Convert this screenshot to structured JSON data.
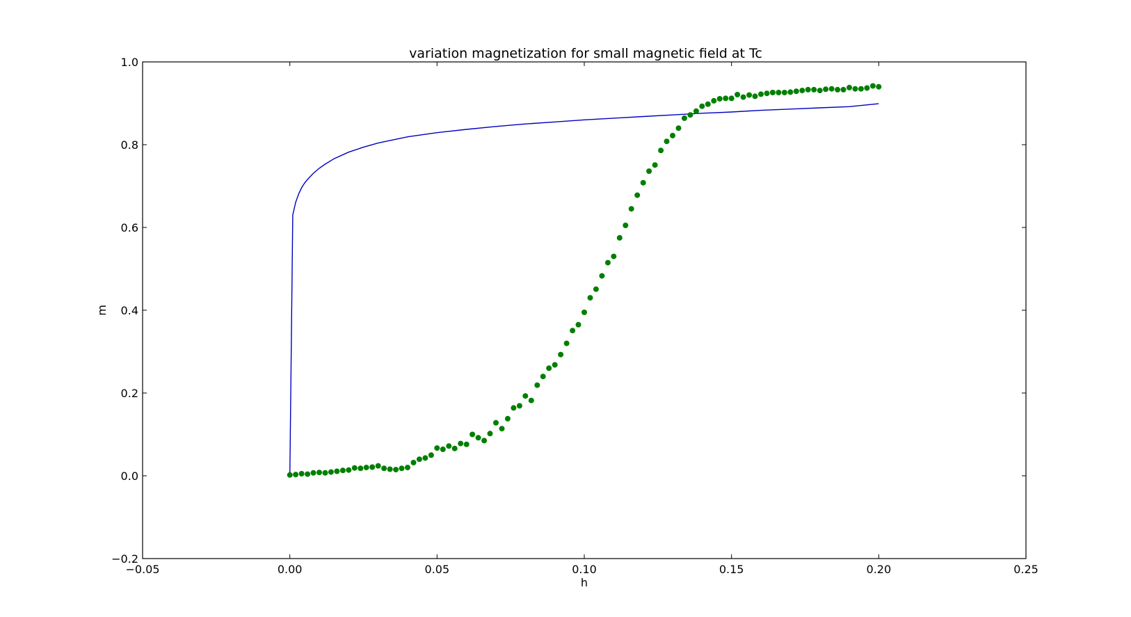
{
  "chart_data": {
    "type": "line",
    "title": "variation magnetization for small magnetic field at Tc",
    "xlabel": "h",
    "ylabel": "m",
    "xlim": [
      -0.05,
      0.25
    ],
    "ylim": [
      -0.2,
      1.0
    ],
    "x_ticks": [
      -0.05,
      0.0,
      0.05,
      0.1,
      0.15,
      0.2,
      0.25
    ],
    "x_tick_labels": [
      "−0.05",
      "0.00",
      "0.05",
      "0.10",
      "0.15",
      "0.20",
      "0.25"
    ],
    "y_ticks": [
      -0.2,
      0.0,
      0.2,
      0.4,
      0.6,
      0.8,
      1.0
    ],
    "y_tick_labels": [
      "−0.2",
      "0.0",
      "0.2",
      "0.4",
      "0.6",
      "0.8",
      "1.0"
    ],
    "grid": false,
    "series": [
      {
        "kind": "line",
        "color": "#0000bf",
        "x": [
          0.0,
          0.001,
          0.002,
          0.003,
          0.004,
          0.005,
          0.006,
          0.008,
          0.01,
          0.012,
          0.015,
          0.02,
          0.025,
          0.03,
          0.04,
          0.05,
          0.06,
          0.07,
          0.08,
          0.09,
          0.1,
          0.11,
          0.12,
          0.13,
          0.14,
          0.15,
          0.16,
          0.17,
          0.18,
          0.19,
          0.2
        ],
        "y": [
          0.0,
          0.63,
          0.661,
          0.681,
          0.696,
          0.707,
          0.716,
          0.731,
          0.743,
          0.753,
          0.766,
          0.782,
          0.794,
          0.804,
          0.819,
          0.829,
          0.837,
          0.844,
          0.85,
          0.855,
          0.86,
          0.864,
          0.868,
          0.872,
          0.876,
          0.879,
          0.883,
          0.886,
          0.889,
          0.892,
          0.899
        ]
      },
      {
        "kind": "scatter",
        "color": "#007f00",
        "x": [
          0.0,
          0.002,
          0.004,
          0.006,
          0.008,
          0.01,
          0.012,
          0.014,
          0.016,
          0.018,
          0.02,
          0.022,
          0.024,
          0.026,
          0.028,
          0.03,
          0.032,
          0.034,
          0.036,
          0.038,
          0.04,
          0.042,
          0.044,
          0.046,
          0.048,
          0.05,
          0.052,
          0.054,
          0.056,
          0.058,
          0.06,
          0.062,
          0.064,
          0.066,
          0.068,
          0.07,
          0.072,
          0.074,
          0.076,
          0.078,
          0.08,
          0.082,
          0.084,
          0.086,
          0.088,
          0.09,
          0.092,
          0.094,
          0.096,
          0.098,
          0.1,
          0.102,
          0.104,
          0.106,
          0.108,
          0.11,
          0.112,
          0.114,
          0.116,
          0.118,
          0.12,
          0.122,
          0.124,
          0.126,
          0.128,
          0.13,
          0.132,
          0.134,
          0.136,
          0.138,
          0.14,
          0.142,
          0.144,
          0.146,
          0.148,
          0.15,
          0.152,
          0.154,
          0.156,
          0.158,
          0.16,
          0.162,
          0.164,
          0.166,
          0.168,
          0.17,
          0.172,
          0.174,
          0.176,
          0.178,
          0.18,
          0.182,
          0.184,
          0.186,
          0.188,
          0.19,
          0.192,
          0.194,
          0.196,
          0.198,
          0.2
        ],
        "y": [
          0.002,
          0.003,
          0.005,
          0.004,
          0.007,
          0.008,
          0.007,
          0.009,
          0.011,
          0.013,
          0.014,
          0.019,
          0.018,
          0.02,
          0.021,
          0.024,
          0.018,
          0.016,
          0.015,
          0.018,
          0.02,
          0.032,
          0.04,
          0.043,
          0.05,
          0.067,
          0.064,
          0.072,
          0.066,
          0.078,
          0.076,
          0.1,
          0.092,
          0.085,
          0.102,
          0.128,
          0.114,
          0.138,
          0.164,
          0.169,
          0.193,
          0.182,
          0.219,
          0.24,
          0.26,
          0.268,
          0.293,
          0.32,
          0.351,
          0.365,
          0.395,
          0.43,
          0.451,
          0.483,
          0.515,
          0.53,
          0.575,
          0.605,
          0.645,
          0.678,
          0.708,
          0.736,
          0.751,
          0.786,
          0.808,
          0.822,
          0.84,
          0.864,
          0.872,
          0.881,
          0.893,
          0.898,
          0.906,
          0.911,
          0.912,
          0.912,
          0.921,
          0.915,
          0.92,
          0.917,
          0.922,
          0.924,
          0.926,
          0.926,
          0.926,
          0.927,
          0.929,
          0.931,
          0.933,
          0.933,
          0.931,
          0.934,
          0.935,
          0.933,
          0.933,
          0.938,
          0.935,
          0.935,
          0.937,
          0.942,
          0.94
        ]
      }
    ]
  }
}
